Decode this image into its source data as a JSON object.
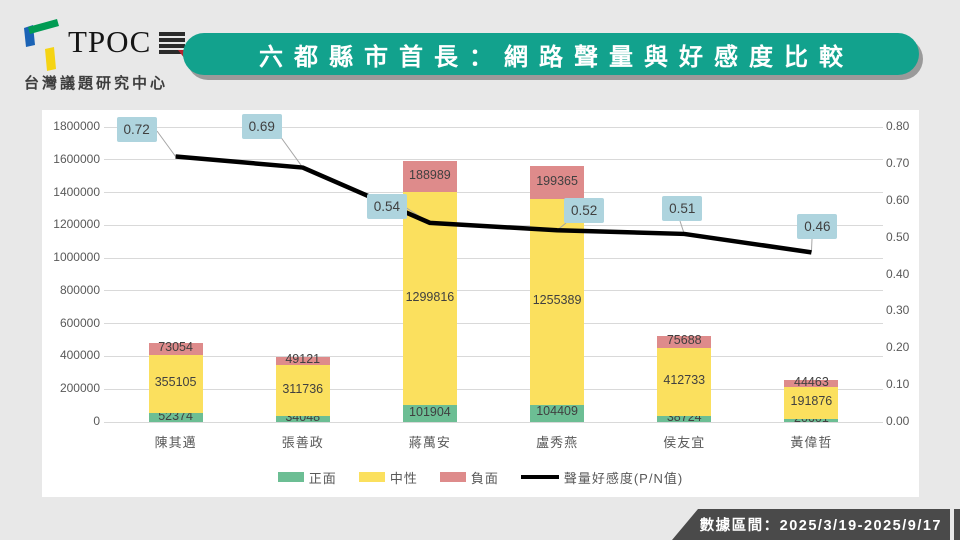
{
  "header": {
    "logo": {
      "brand": "TPOC",
      "subtitle": "台灣議題研究中心",
      "mark_colors": {
        "green": "#019B53",
        "blue": "#1B63B5",
        "yellow": "#F5D414",
        "seal": "#2B2B2B",
        "seal_accent": "#B32330"
      }
    },
    "title": "六都縣市首長：網路聲量與好感度比較",
    "title_bg": "#12A28D"
  },
  "footer": {
    "date_range_label": "數據區間：2025/3/19-2025/9/17",
    "bg": "#4A4A4A"
  },
  "chart_data": {
    "type": "bar",
    "stacked": true,
    "title": "六都縣市首長：網路聲量與好感度比較",
    "categories": [
      "陳其邁",
      "張善政",
      "蔣萬安",
      "盧秀燕",
      "侯友宜",
      "黃偉哲"
    ],
    "series": [
      {
        "name": "正面",
        "color": "#6CBE94",
        "values": [
          52374,
          34048,
          101904,
          104409,
          38724,
          20601
        ]
      },
      {
        "name": "中性",
        "color": "#FBE05E",
        "values": [
          355105,
          311736,
          1299816,
          1255389,
          412733,
          191876
        ]
      },
      {
        "name": "負面",
        "color": "#DE8B8B",
        "values": [
          73054,
          49121,
          188989,
          199365,
          75688,
          44463
        ]
      }
    ],
    "line_series": {
      "name": "聲量好感度(P/N值)",
      "color": "#000000",
      "label_bg": "#AED4DE",
      "values": [
        0.72,
        0.69,
        0.54,
        0.52,
        0.51,
        0.46
      ]
    },
    "left_axis": {
      "min": 0,
      "max": 1800000,
      "step": 200000,
      "tick_labels": [
        "0",
        "200000",
        "400000",
        "600000",
        "800000",
        "1000000",
        "1200000",
        "1400000",
        "1600000",
        "1800000"
      ]
    },
    "right_axis": {
      "min": 0,
      "max": 0.8,
      "step": 0.1,
      "tick_labels": [
        "0.00",
        "0.10",
        "0.20",
        "0.30",
        "0.40",
        "0.50",
        "0.60",
        "0.70",
        "0.80"
      ]
    },
    "grid": true,
    "legend_position": "bottom",
    "legend": [
      "正面",
      "中性",
      "負面",
      "聲量好感度(P/N值)"
    ]
  }
}
